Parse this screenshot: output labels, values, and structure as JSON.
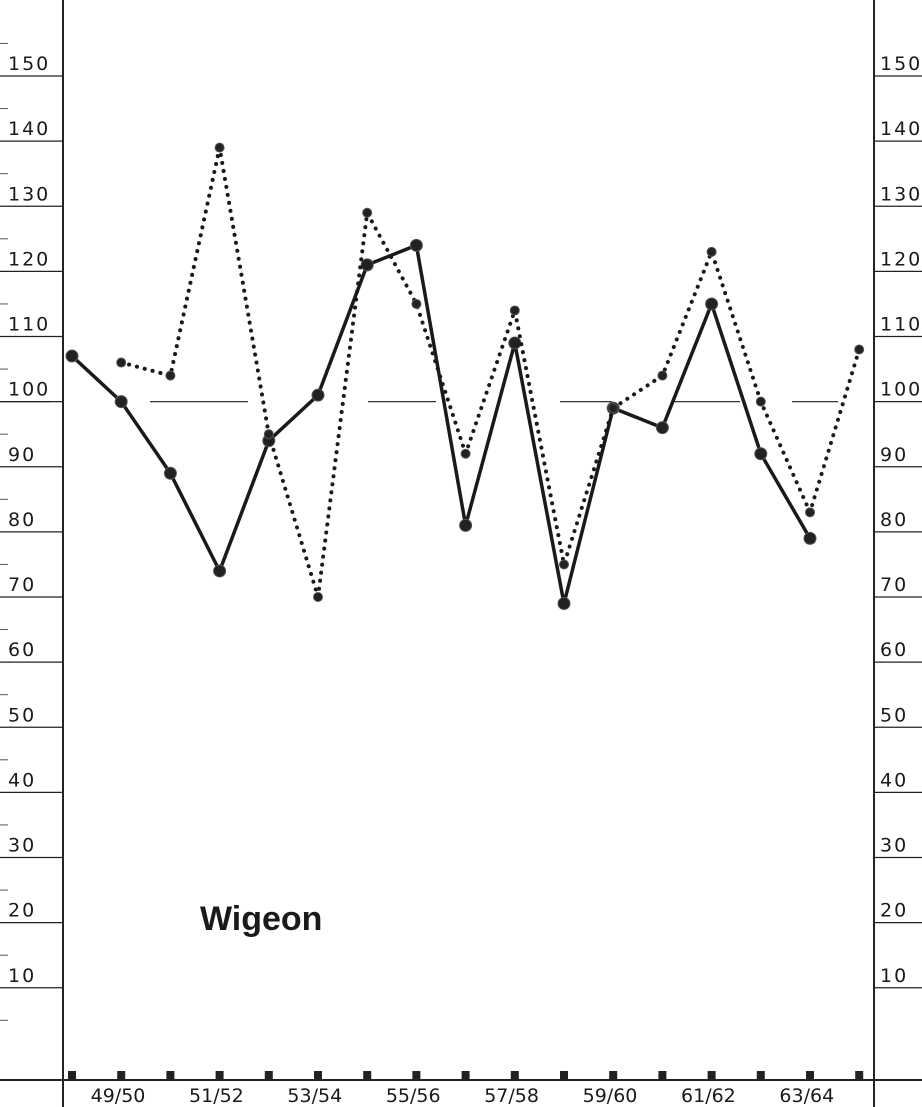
{
  "chart_data": {
    "type": "line",
    "title": "Wigeon",
    "y_ticks": [
      "10",
      "20",
      "30",
      "40",
      "50",
      "60",
      "70",
      "80",
      "90",
      "100",
      "110",
      "120",
      "130",
      "140",
      "150"
    ],
    "x_tick_labels": [
      "49/50",
      "51/52",
      "53/54",
      "55/56",
      "57/58",
      "59/60",
      "61/62",
      "63/64"
    ],
    "x": [
      1,
      2,
      3,
      4,
      5,
      6,
      7,
      8,
      9,
      10,
      11,
      12,
      13,
      14,
      15,
      16,
      17
    ],
    "ylim": [
      0,
      160
    ],
    "reference_line": 100,
    "grid": false,
    "series": [
      {
        "style": "solid",
        "points": [
          {
            "x": 1,
            "y": 107
          },
          {
            "x": 2,
            "y": 100
          },
          {
            "x": 3,
            "y": 89
          },
          {
            "x": 4,
            "y": 74
          },
          {
            "x": 5,
            "y": 94
          },
          {
            "x": 6,
            "y": 101
          },
          {
            "x": 7,
            "y": 121
          },
          {
            "x": 8,
            "y": 124
          },
          {
            "x": 9,
            "y": 81
          },
          {
            "x": 10,
            "y": 109
          },
          {
            "x": 11,
            "y": 69
          },
          {
            "x": 12,
            "y": 99
          },
          {
            "x": 13,
            "y": 96
          },
          {
            "x": 14,
            "y": 115
          },
          {
            "x": 15,
            "y": 92
          },
          {
            "x": 16,
            "y": 79
          }
        ]
      },
      {
        "style": "dotted",
        "points": [
          {
            "x": 2,
            "y": 106
          },
          {
            "x": 3,
            "y": 104
          },
          {
            "x": 4,
            "y": 139
          },
          {
            "x": 5,
            "y": 95
          },
          {
            "x": 6,
            "y": 70
          },
          {
            "x": 7,
            "y": 129
          },
          {
            "x": 8,
            "y": 115
          },
          {
            "x": 9,
            "y": 92
          },
          {
            "x": 10,
            "y": 114
          },
          {
            "x": 11,
            "y": 75
          },
          {
            "x": 12,
            "y": 99
          },
          {
            "x": 13,
            "y": 104
          },
          {
            "x": 14,
            "y": 123
          },
          {
            "x": 15,
            "y": 100
          },
          {
            "x": 16,
            "y": 83
          },
          {
            "x": 17,
            "y": 108
          }
        ]
      }
    ]
  }
}
